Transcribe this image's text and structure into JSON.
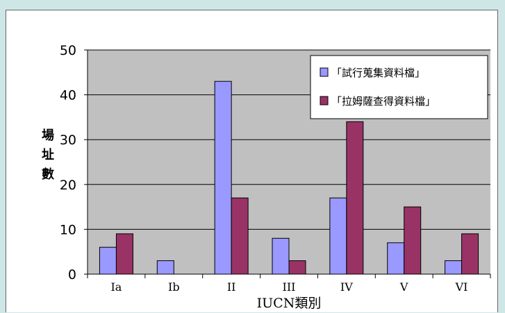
{
  "chart_data": {
    "type": "bar",
    "categories": [
      "Ia",
      "Ib",
      "II",
      "III",
      "IV",
      "V",
      "VI"
    ],
    "series": [
      {
        "name": "「試行蒐集資料檔」",
        "values": [
          6,
          3,
          43,
          8,
          17,
          7,
          3
        ],
        "color": "#9999ff"
      },
      {
        "name": "「拉姆薩查得資料檔」",
        "values": [
          9,
          0,
          17,
          3,
          34,
          15,
          9
        ],
        "color": "#993366"
      }
    ],
    "xlabel": "IUCN類別",
    "ylabel": "場址數",
    "ylim": [
      0,
      50
    ],
    "yticks": [
      0,
      10,
      20,
      30,
      40,
      50
    ],
    "grid": true,
    "legend": "top-right",
    "plot_background": "#c0c0c0"
  }
}
